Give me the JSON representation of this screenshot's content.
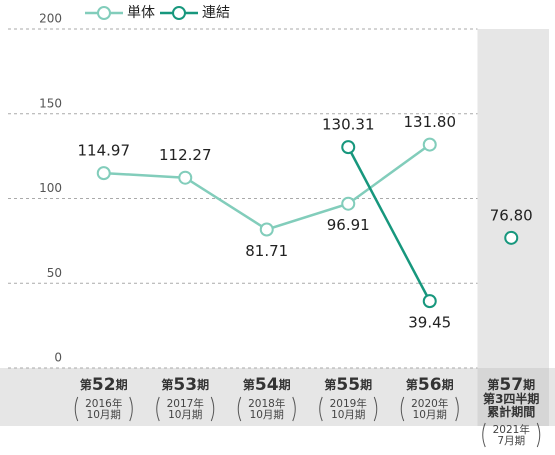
{
  "chart_data": {
    "type": "line",
    "categories": [
      {
        "label": [
          "第52期"
        ],
        "sub": [
          "2016年",
          "10月期"
        ]
      },
      {
        "label": [
          "第53期"
        ],
        "sub": [
          "2017年",
          "10月期"
        ]
      },
      {
        "label": [
          "第54期"
        ],
        "sub": [
          "2018年",
          "10月期"
        ]
      },
      {
        "label": [
          "第55期"
        ],
        "sub": [
          "2019年",
          "10月期"
        ]
      },
      {
        "label": [
          "第56期"
        ],
        "sub": [
          "2020年",
          "10月期"
        ]
      },
      {
        "label": [
          "第57期",
          "第3四半期",
          "累計期間"
        ],
        "sub": [
          "2021年",
          "7月期"
        ]
      }
    ],
    "series": [
      {
        "name": "単体",
        "color": "#82cdbb",
        "values": [
          114.97,
          112.27,
          81.71,
          96.91,
          131.8,
          null
        ],
        "value_labels": [
          "114.97",
          "112.27",
          "81.71",
          "96.91",
          "131.80",
          null
        ]
      },
      {
        "name": "連結",
        "color": "#17977d",
        "values": [
          null,
          null,
          null,
          130.31,
          39.45,
          76.8
        ],
        "value_labels": [
          null,
          null,
          null,
          "130.31",
          "39.45",
          "76.80"
        ]
      }
    ],
    "shaded_category": 5,
    "ylim": [
      0,
      200
    ],
    "yticks": [
      0,
      50,
      100,
      150,
      200
    ],
    "grid": true
  }
}
